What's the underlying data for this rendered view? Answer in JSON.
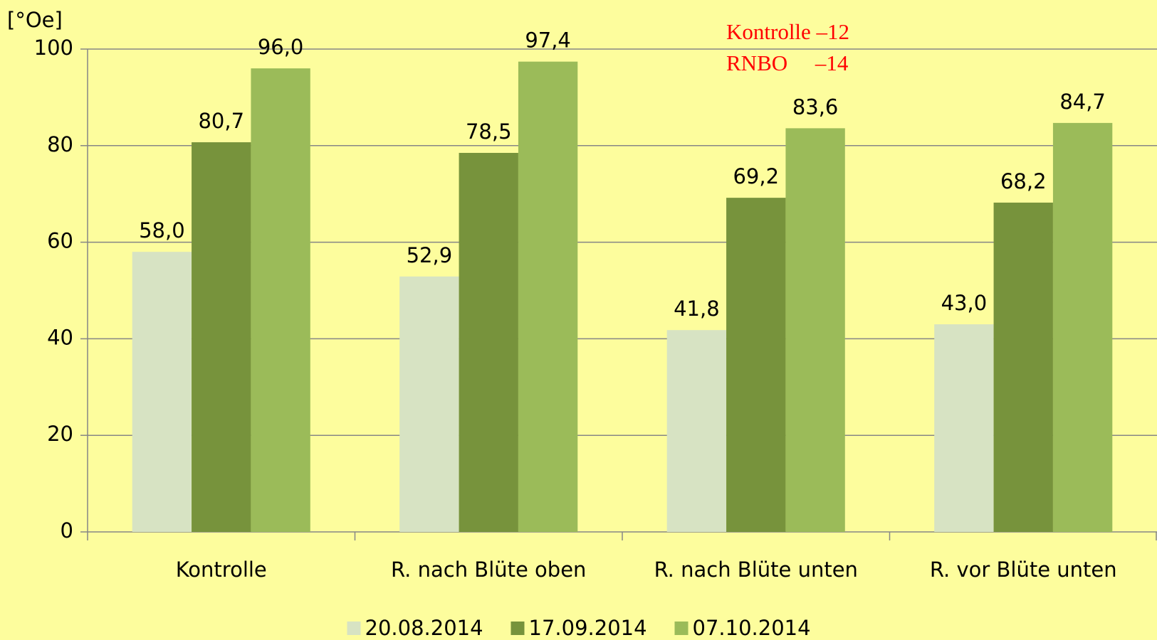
{
  "chart_data": {
    "type": "bar",
    "y_label": "[°Oe]",
    "annotations": [
      "Kontrolle –12",
      "RNBO     –14"
    ],
    "categories": [
      "Kontrolle",
      "R. nach Blüte oben",
      "R. nach Blüte unten",
      "R. vor Blüte unten"
    ],
    "series": [
      {
        "name": "20.08.2014",
        "color": "#d7e3c3",
        "values": [
          58.0,
          52.9,
          41.8,
          43.0
        ],
        "value_labels": [
          "58,0",
          "52,9",
          "41,8",
          "43,0"
        ]
      },
      {
        "name": "17.09.2014",
        "color": "#77933c",
        "values": [
          80.7,
          78.5,
          69.2,
          68.2
        ],
        "value_labels": [
          "80,7",
          "78,5",
          "69,2",
          "68,2"
        ]
      },
      {
        "name": "07.10.2014",
        "color": "#9bbb59",
        "values": [
          96.0,
          97.4,
          83.6,
          84.7
        ],
        "value_labels": [
          "96,0",
          "97,4",
          "83,6",
          "84,7"
        ]
      }
    ],
    "ylim": [
      0,
      100
    ],
    "yticks": [
      0,
      20,
      40,
      60,
      80,
      100
    ],
    "grid": true,
    "legend": "bottom"
  }
}
